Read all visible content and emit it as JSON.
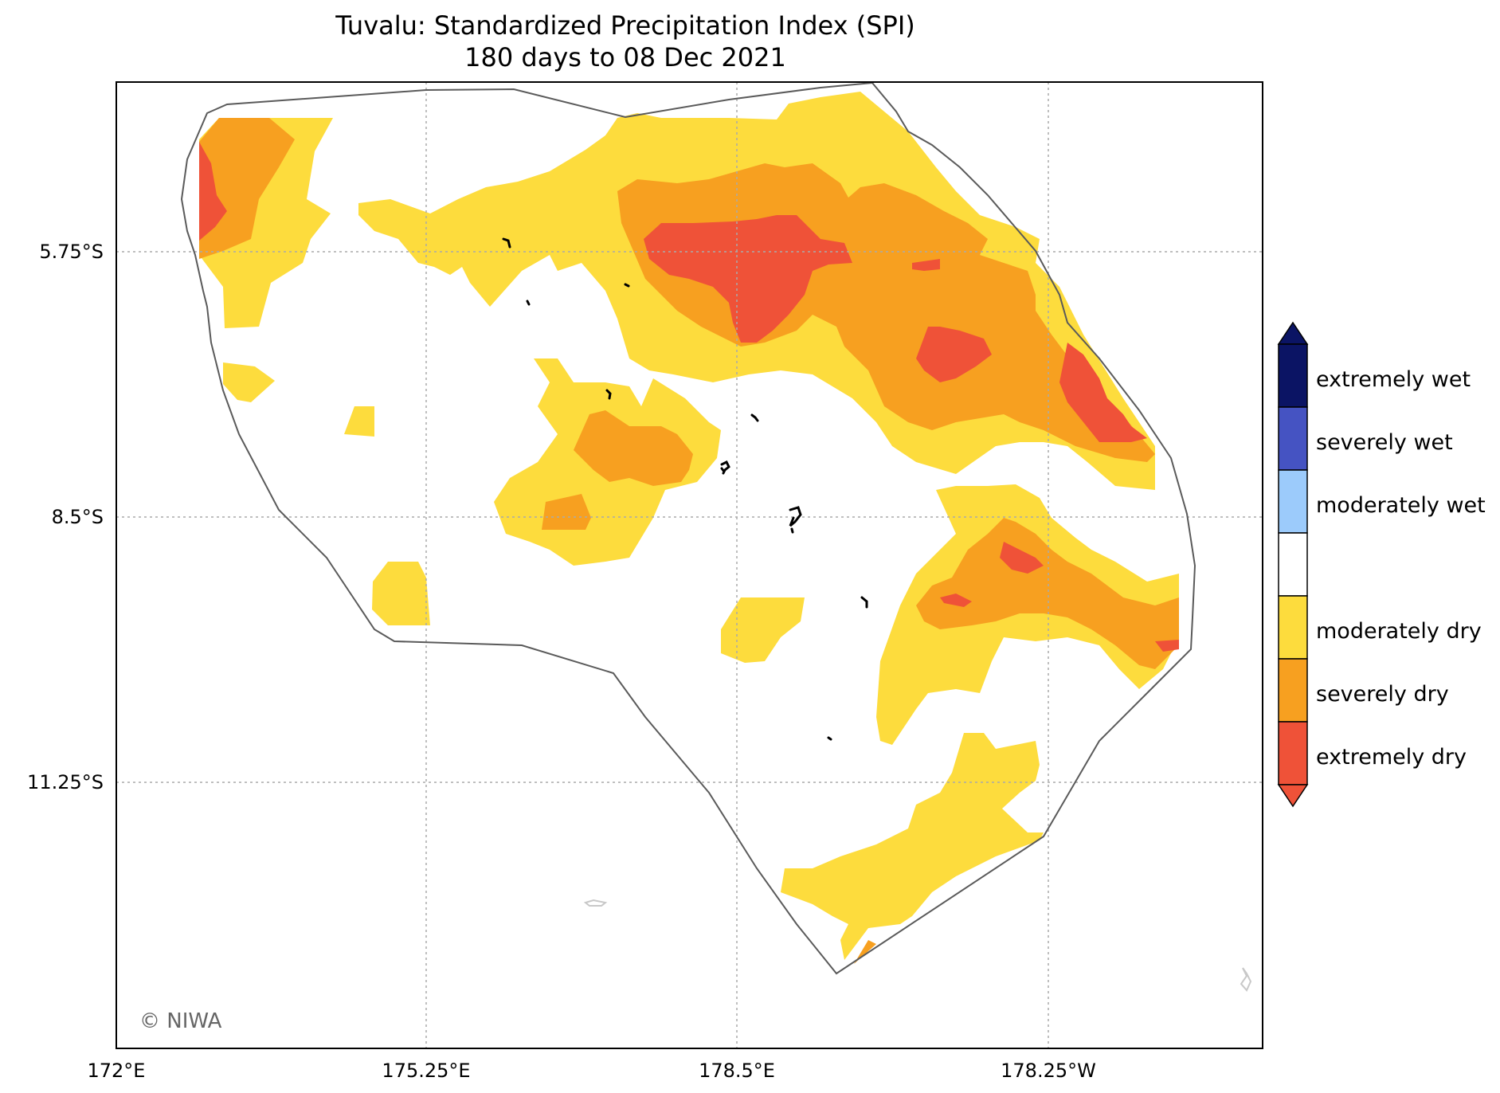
{
  "title": "Tuvalu: Standardized Precipitation Index (SPI)",
  "subtitle": "180 days to 08 Dec 2021",
  "credit": "© NIWA",
  "x_ticks": [
    "172°E",
    "175.25°E",
    "178.5°E",
    "178.25°W"
  ],
  "y_ticks": [
    "5.75°S",
    "8.5°S",
    "11.25°S"
  ],
  "legend": {
    "items": [
      {
        "label": "extremely wet",
        "color": "#0b1464"
      },
      {
        "label": "severely wet",
        "color": "#4553c2"
      },
      {
        "label": "moderately wet",
        "color": "#9ccbfb"
      },
      {
        "label": "",
        "color": "#ffffff"
      },
      {
        "label": "moderately dry",
        "color": "#fddc3d"
      },
      {
        "label": "severely dry",
        "color": "#f7a020"
      },
      {
        "label": "extremely dry",
        "color": "#ef5238"
      }
    ],
    "top_arrow_color": "#0b1464",
    "bottom_arrow_color": "#ef5238"
  },
  "colors": {
    "moderately_dry": "#fddc3d",
    "severely_dry": "#f7a020",
    "extremely_dry": "#ef5238",
    "boundary": "#5a5a5a",
    "gridline": "#aaaaaa"
  }
}
